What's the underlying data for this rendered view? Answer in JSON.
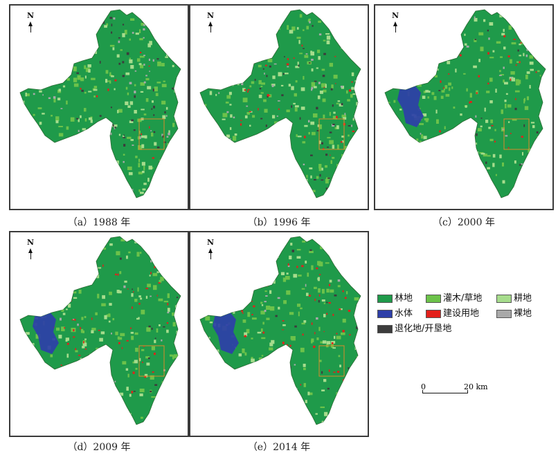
{
  "legend": {
    "items": [
      {
        "label": "林地",
        "color": "#1f9a4a"
      },
      {
        "label": "灌木/草地",
        "color": "#6cc24a"
      },
      {
        "label": "耕地",
        "color": "#a6dc8c"
      },
      {
        "label": "水体",
        "color": "#2e3fa8"
      },
      {
        "label": "建设用地",
        "color": "#e3201b"
      },
      {
        "label": "裸地",
        "color": "#a9a9a9"
      },
      {
        "label": "退化地/开垦地",
        "color": "#3c3c3c"
      }
    ]
  },
  "scale": {
    "start": "0",
    "end": "20 km"
  },
  "north_label": "N",
  "panels": [
    {
      "caption": "（a）1988 年",
      "water": false,
      "built": "low",
      "degraded": "high"
    },
    {
      "caption": "（b）1996 年",
      "water": false,
      "built": "mid",
      "degraded": "high"
    },
    {
      "caption": "（c）2000 年",
      "water": true,
      "built": "mid",
      "degraded": "low"
    },
    {
      "caption": "（d）2009 年",
      "water": true,
      "built": "high",
      "degraded": "low"
    },
    {
      "caption": "（e）2014 年",
      "water": true,
      "built": "high",
      "degraded": "low"
    }
  ]
}
